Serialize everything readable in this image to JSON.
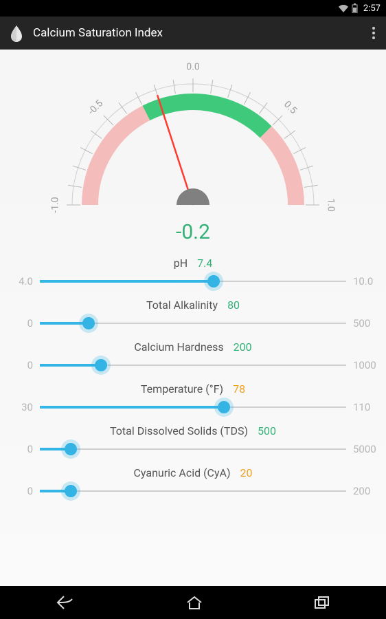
{
  "status": {
    "time": "2:57"
  },
  "header": {
    "title": "Calcium Saturation Index"
  },
  "gauge": {
    "value": -0.2,
    "display": "-0.2",
    "min": -1.0,
    "max": 1.0,
    "ticks": [
      -1.0,
      -0.5,
      0.0,
      0.5,
      1.0
    ],
    "tickLabels": [
      "-1.0",
      "-0.5",
      "0.0",
      "0.5",
      "1.0"
    ],
    "okMin": -0.3,
    "okMax": 0.5,
    "colors": {
      "value": "#33b278",
      "arcBad": "#f5bcbc",
      "arcOk": "#3ec97b",
      "needle": "#ff3a2f",
      "hub": "#808080",
      "tickText": "#9e9e9e",
      "tickLine": "#b8b8b8",
      "outerRing": "#cfcfcf"
    }
  },
  "sliderStyle": {
    "defaultColor": "#33b5e5"
  },
  "sliders": [
    {
      "key": "ph",
      "label": "pH",
      "value": 7.4,
      "display": "7.4",
      "min": 4.0,
      "max": 10.0,
      "minLabel": "4.0",
      "maxLabel": "10.0",
      "valueColor": "#33b278"
    },
    {
      "key": "ta",
      "label": "Total Alkalinity",
      "value": 80,
      "display": "80",
      "min": 0,
      "max": 500,
      "minLabel": "0",
      "maxLabel": "500",
      "valueColor": "#33b278"
    },
    {
      "key": "ch",
      "label": "Calcium Hardness",
      "value": 200,
      "display": "200",
      "min": 0,
      "max": 1000,
      "minLabel": "0",
      "maxLabel": "1000",
      "valueColor": "#33b278"
    },
    {
      "key": "temp",
      "label": "Temperature (°F)",
      "value": 78,
      "display": "78",
      "min": 30,
      "max": 110,
      "minLabel": "30",
      "maxLabel": "110",
      "valueColor": "#f0a020"
    },
    {
      "key": "tds",
      "label": "Total Dissolved Solids (TDS)",
      "value": 500,
      "display": "500",
      "min": 0,
      "max": 5000,
      "minLabel": "0",
      "maxLabel": "5000",
      "valueColor": "#33b278"
    },
    {
      "key": "cya",
      "label": "Cyanuric Acid (CyA)",
      "value": 20,
      "display": "20",
      "min": 0,
      "max": 200,
      "minLabel": "0",
      "maxLabel": "200",
      "valueColor": "#f0a020"
    }
  ]
}
